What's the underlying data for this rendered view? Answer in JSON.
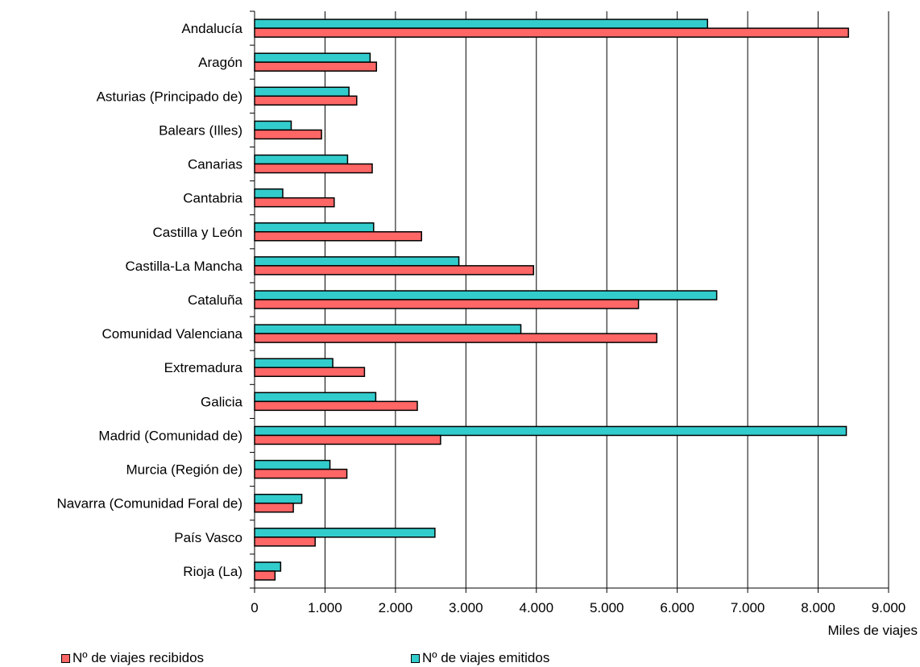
{
  "chart_data": {
    "type": "bar",
    "orientation": "horizontal",
    "categories": [
      "Andalucía",
      "Aragón",
      "Asturias (Principado de)",
      "Balears (Illes)",
      "Canarias",
      "Cantabria",
      "Castilla y León",
      "Castilla-La Mancha",
      "Cataluña",
      "Comunidad Valenciana",
      "Extremadura",
      "Galicia",
      "Madrid (Comunidad de)",
      "Murcia (Región de)",
      "Navarra (Comunidad Foral de)",
      "País Vasco",
      "Rioja (La)"
    ],
    "series": [
      {
        "name": "Nº de viajes emitidos",
        "color": "#33CCCC",
        "values": [
          6430,
          1640,
          1340,
          520,
          1320,
          400,
          1690,
          2900,
          6560,
          3780,
          1110,
          1720,
          8400,
          1070,
          670,
          2560,
          370
        ]
      },
      {
        "name": "Nº de viajes recibidos",
        "color": "#FF6666",
        "values": [
          8430,
          1730,
          1450,
          950,
          1670,
          1130,
          2370,
          3960,
          5450,
          5710,
          1560,
          2310,
          2640,
          1310,
          550,
          860,
          290
        ]
      }
    ],
    "xlim": [
      0,
      9000
    ],
    "xticks": [
      "0",
      "1.000",
      "2.000",
      "3.000",
      "4.000",
      "5.000",
      "6.000",
      "7.000",
      "8.000",
      "9.000"
    ],
    "xlabel": "Miles de viajes",
    "ylabel": "",
    "title": "",
    "grid": "vertical",
    "legend_position": "bottom"
  }
}
